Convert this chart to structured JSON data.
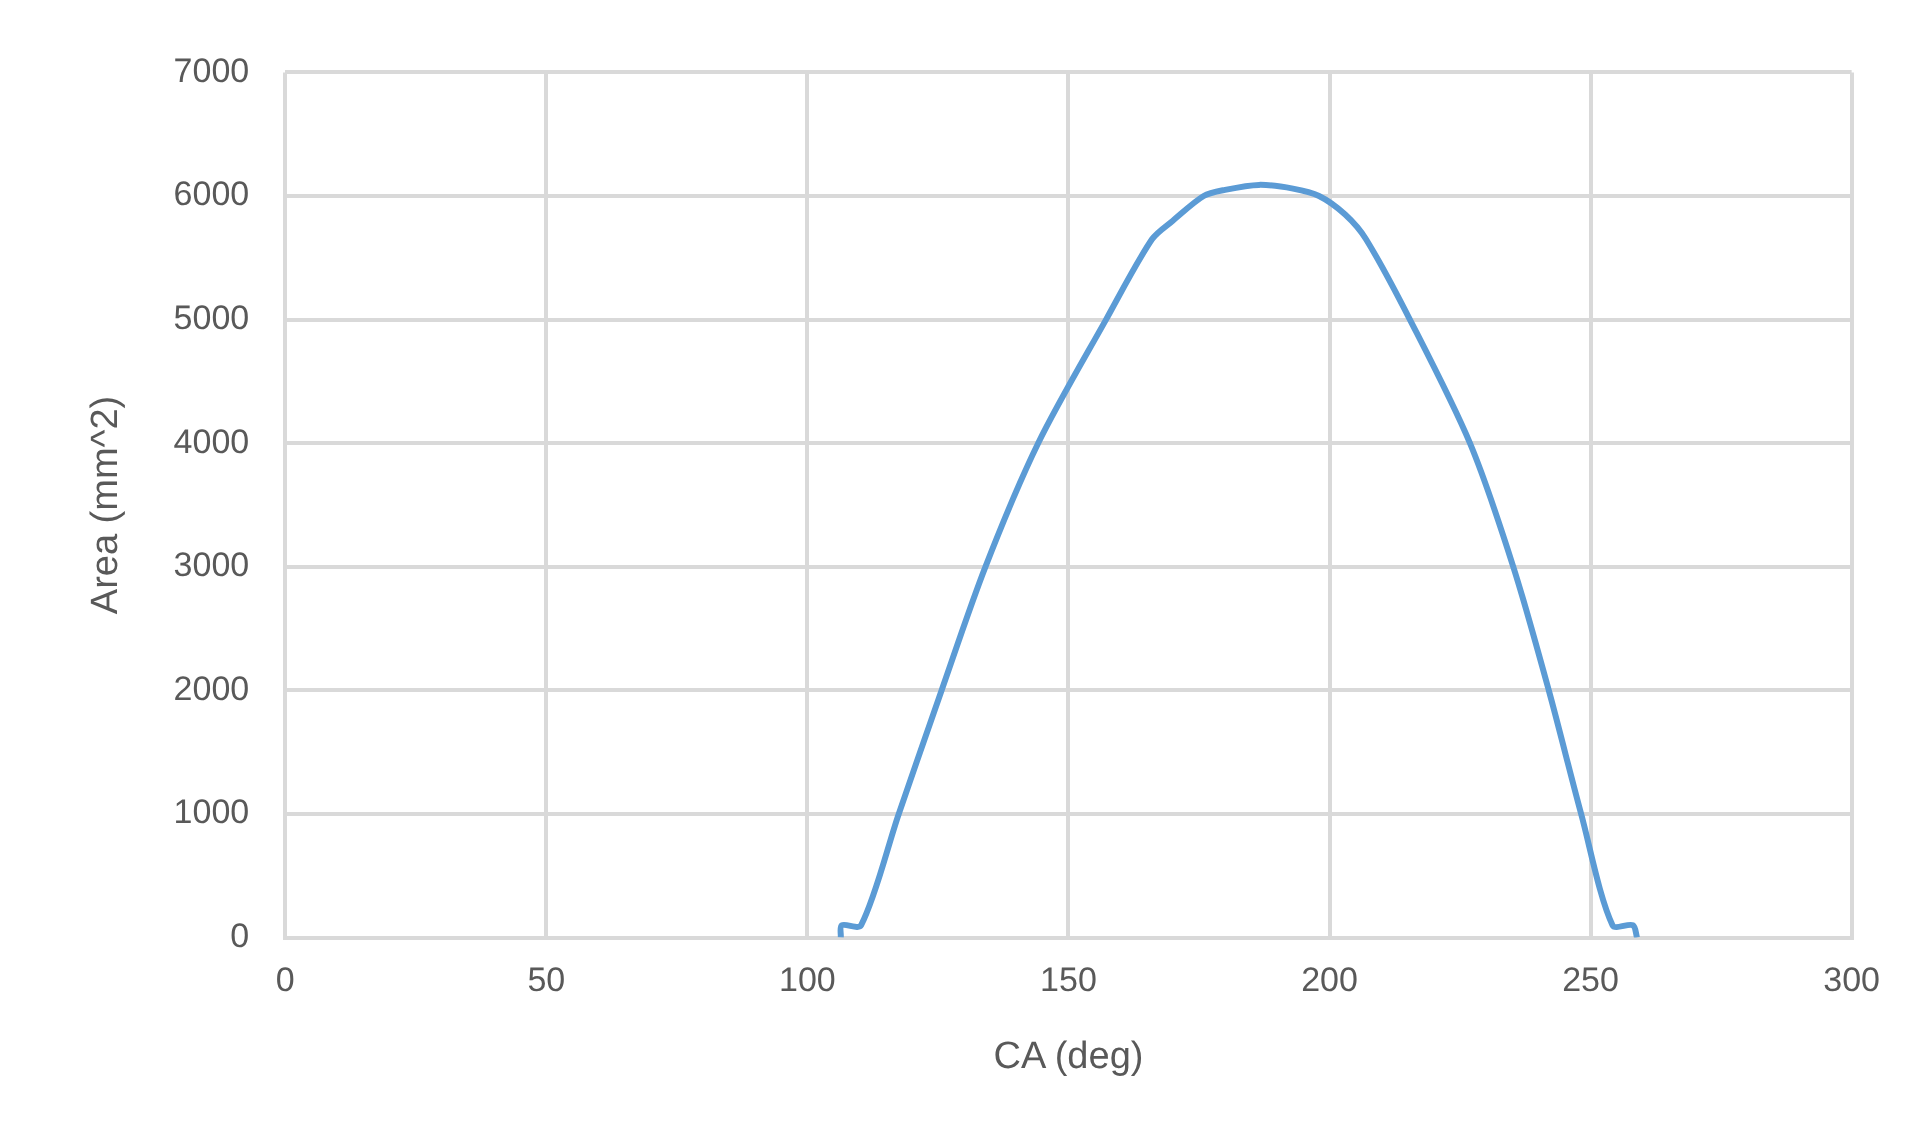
{
  "chart_data": {
    "type": "line",
    "xlabel": "CA (deg)",
    "ylabel": "Area (mm^2)",
    "xlim": [
      0,
      300
    ],
    "xticks": [
      0,
      50,
      100,
      150,
      200,
      250,
      300
    ],
    "ylim": [
      0,
      7000
    ],
    "yticks": [
      0,
      1000,
      2000,
      3000,
      4000,
      5000,
      6000,
      7000
    ],
    "grid": true,
    "legend": false,
    "marker": "none",
    "line_style": "solid",
    "series": [
      {
        "color": "#5b9bd5",
        "x": [
          106.4,
          106.6,
          110.3,
          117.5,
          125.7,
          134.1,
          144.2,
          157.2,
          166,
          170,
          175.9,
          180,
          186.5,
          193,
          198,
          203,
          207,
          215.4,
          226.9,
          235.2,
          242,
          248.2,
          254.2,
          258.1,
          258.9
        ],
        "values": [
          0,
          100,
          100,
          1000,
          2000,
          3000,
          4000,
          5000,
          5650,
          5800,
          6000,
          6050,
          6090,
          6060,
          6000,
          5850,
          5650,
          5000,
          4000,
          3000,
          2000,
          1000,
          100,
          100,
          0
        ]
      }
    ]
  }
}
